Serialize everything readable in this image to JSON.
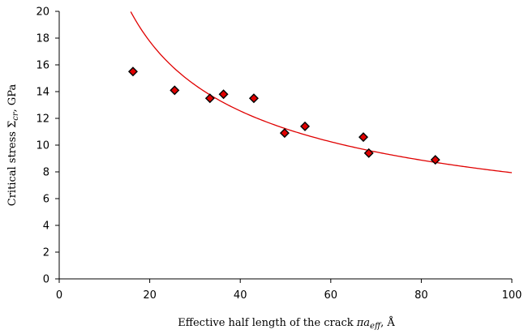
{
  "chart_data": {
    "type": "scatter",
    "xlabel": "Effective half length of the crack πa_eff, Å",
    "xlabel_parts": {
      "pre": "Effective half length of the crack ",
      "sym": "πa",
      "sub": "eff",
      "post": ", Å"
    },
    "ylabel": "Critical stress Σ_cr, GPa",
    "ylabel_parts": {
      "pre": "Critical stress Σ",
      "sub": "cr",
      "post": ", GPa"
    },
    "xlim": [
      0,
      100
    ],
    "ylim": [
      0,
      20
    ],
    "xticks": [
      0,
      20,
      40,
      60,
      80,
      100
    ],
    "yticks": [
      0,
      2,
      4,
      6,
      8,
      10,
      12,
      14,
      16,
      18,
      20
    ],
    "grid": false,
    "series": [
      {
        "kind": "points",
        "marker": "diamond",
        "color": "#e00000",
        "edge_color": "#000000",
        "x": [
          16.3,
          25.5,
          33.3,
          36.3,
          43.0,
          49.8,
          54.3,
          67.2,
          68.4,
          83.1
        ],
        "y": [
          15.5,
          14.1,
          13.5,
          13.8,
          13.5,
          10.9,
          11.4,
          10.6,
          9.4,
          8.9
        ]
      },
      {
        "kind": "curve",
        "color": "#e00000",
        "model": "y = k / sqrt(x)",
        "k": 79.4,
        "x_range": [
          15.8,
          100
        ]
      }
    ]
  }
}
